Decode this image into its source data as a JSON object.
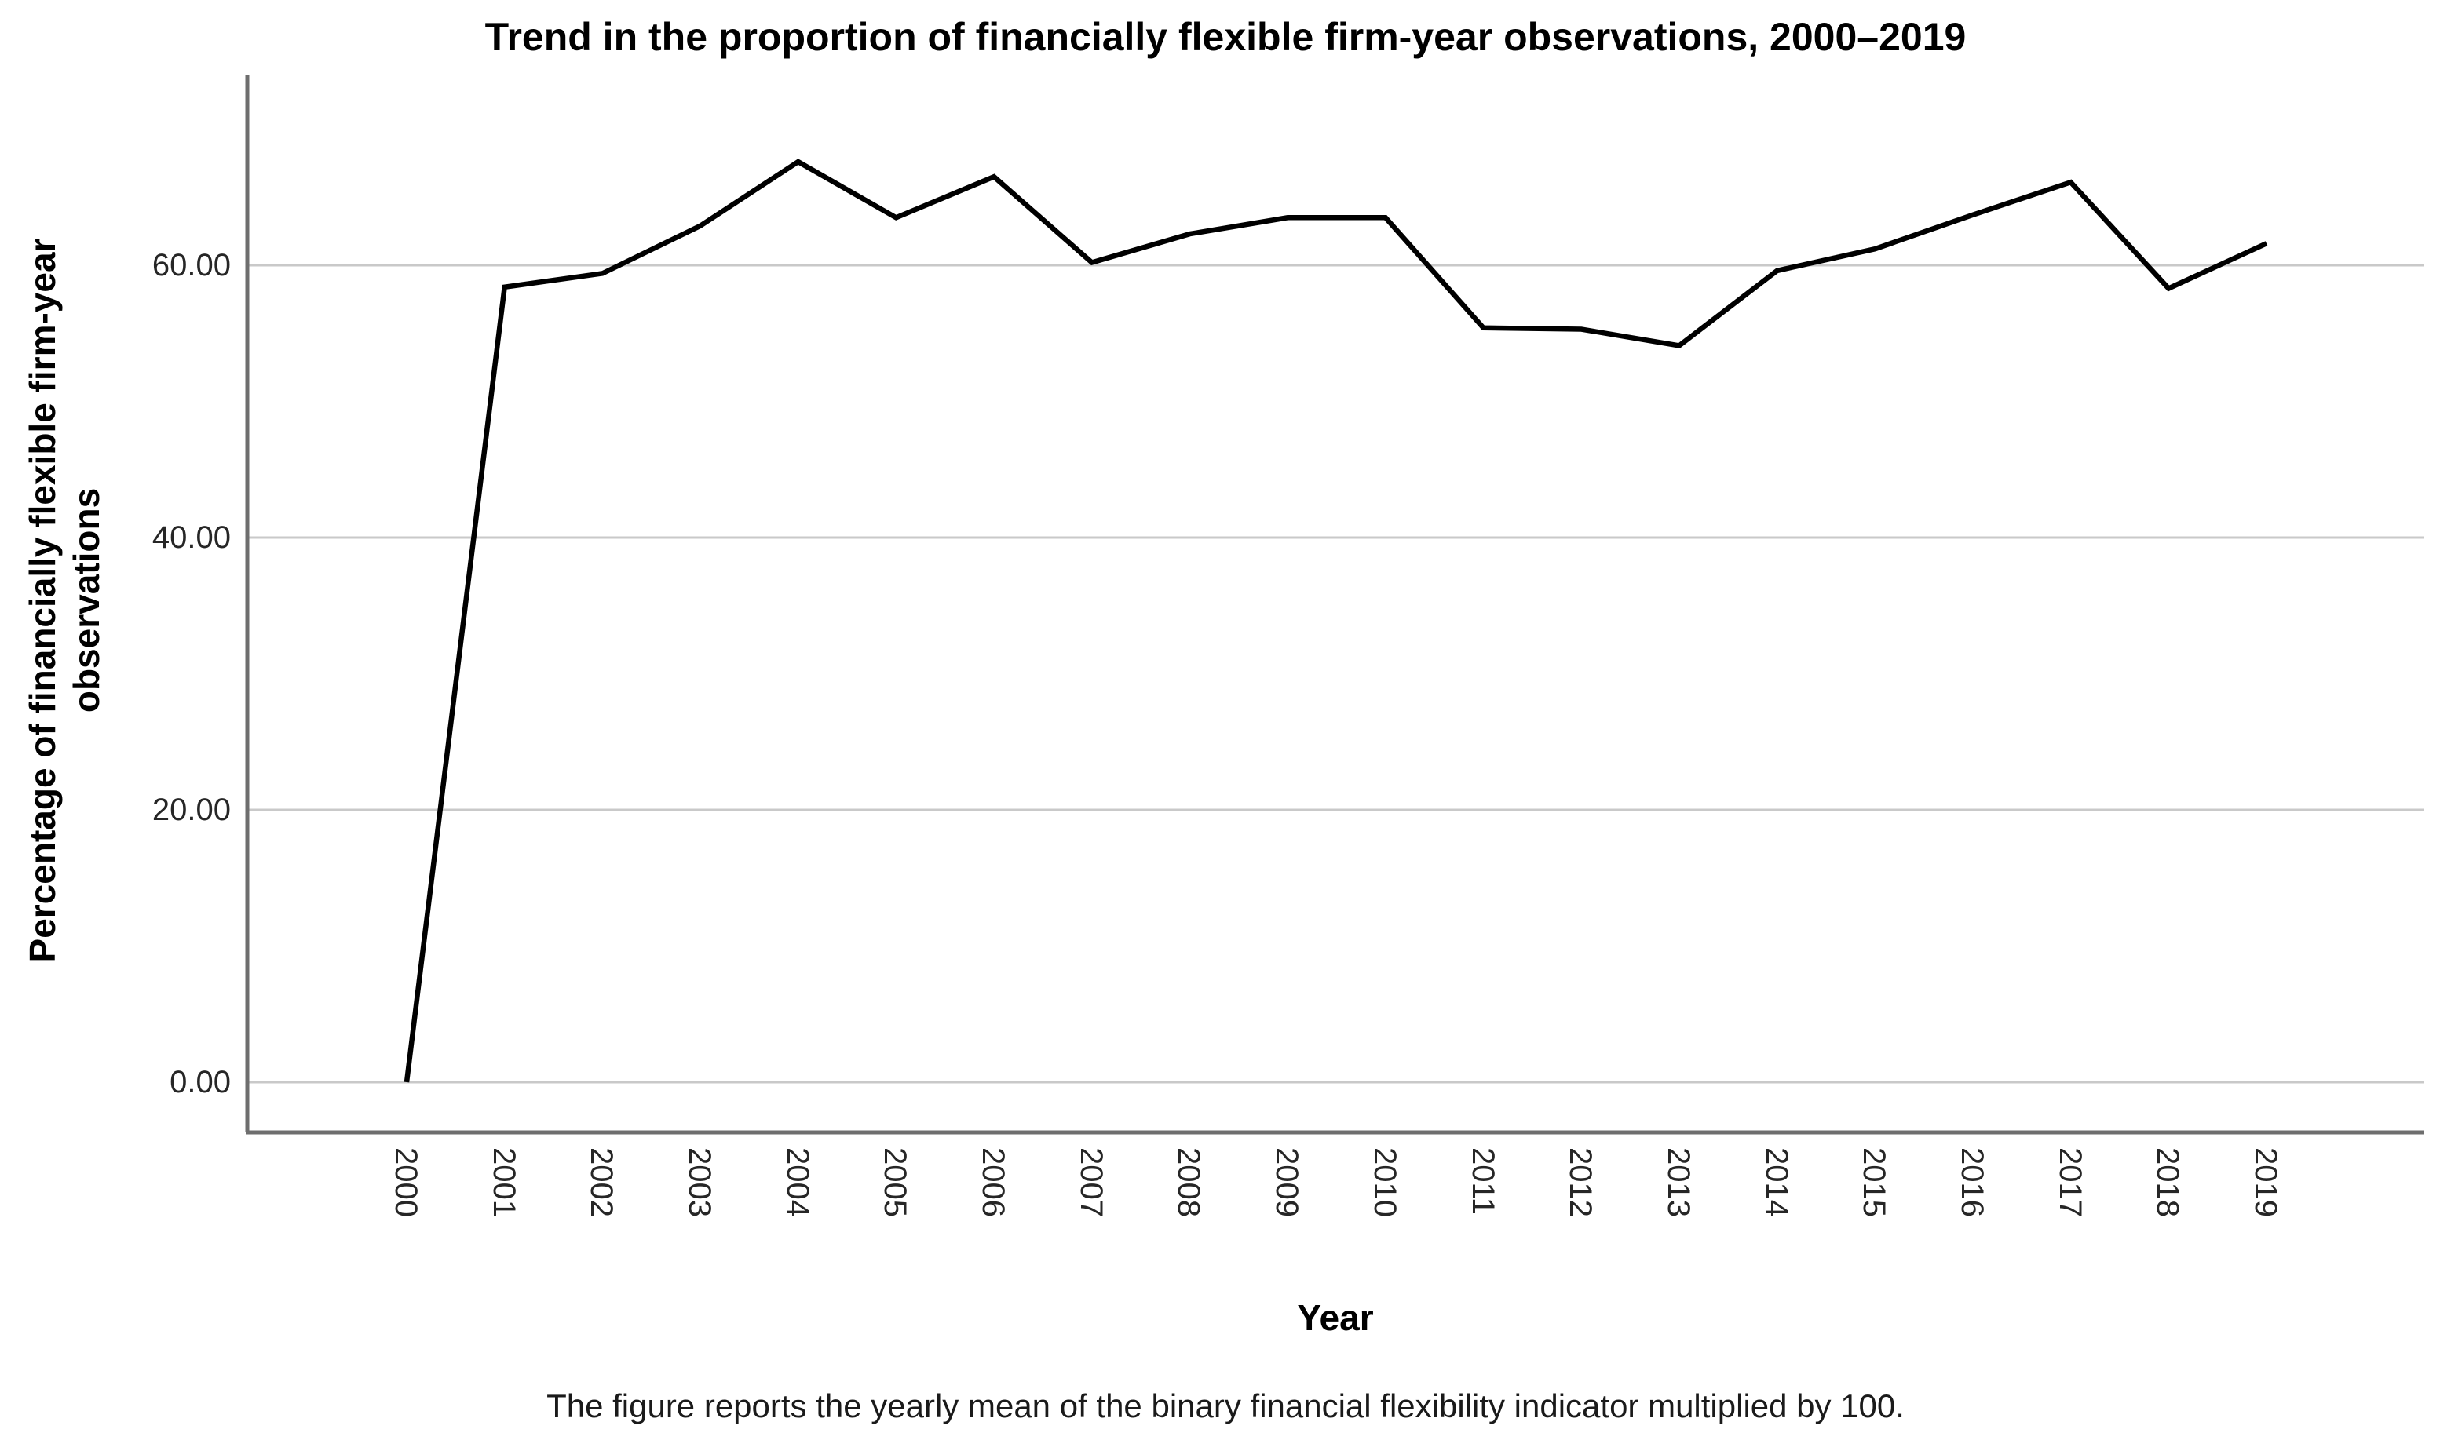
{
  "title": "Trend in the proportion of financially flexible firm-year observations, 2000–2019",
  "y_axis": {
    "label_line1": "Percentage of financially flexible firm-year",
    "label_line2": "observations",
    "tick_labels": [
      "0.00",
      "20.00",
      "40.00",
      "60.00"
    ],
    "tick_values": [
      0,
      20,
      40,
      60
    ]
  },
  "x_axis": {
    "label": "Year",
    "tick_labels": [
      "2000",
      "2001",
      "2002",
      "2003",
      "2004",
      "2005",
      "2006",
      "2007",
      "2008",
      "2009",
      "2010",
      "2011",
      "2012",
      "2013",
      "2014",
      "2015",
      "2016",
      "2017",
      "2018",
      "2019"
    ]
  },
  "caption": "The figure reports the yearly mean of the binary financial flexibility indicator multiplied by 100.",
  "chart_data": {
    "type": "line",
    "title": "Trend in the proportion of financially flexible firm-year observations, 2000–2019",
    "xlabel": "Year",
    "ylabel": "Percentage of financially flexible firm-year observations",
    "x": [
      2000,
      2001,
      2002,
      2003,
      2004,
      2005,
      2006,
      2007,
      2008,
      2009,
      2010,
      2011,
      2012,
      2013,
      2014,
      2015,
      2016,
      2017,
      2018,
      2019
    ],
    "values": [
      0.0,
      58.4,
      59.4,
      62.9,
      67.6,
      63.5,
      66.5,
      60.2,
      62.3,
      63.5,
      63.5,
      55.4,
      55.3,
      54.1,
      59.6,
      61.2,
      63.7,
      66.1,
      58.3,
      61.6
    ],
    "ylim": [
      -3.7,
      74.0
    ],
    "gridlines": [
      0,
      20,
      40,
      60
    ],
    "grid": "horizontal",
    "legend": "none",
    "line_color": "#000000",
    "line_width": 6.5,
    "gridline_color": "#c9c9c9",
    "axis_color": "#6e6e6e",
    "background": "#ffffff"
  }
}
